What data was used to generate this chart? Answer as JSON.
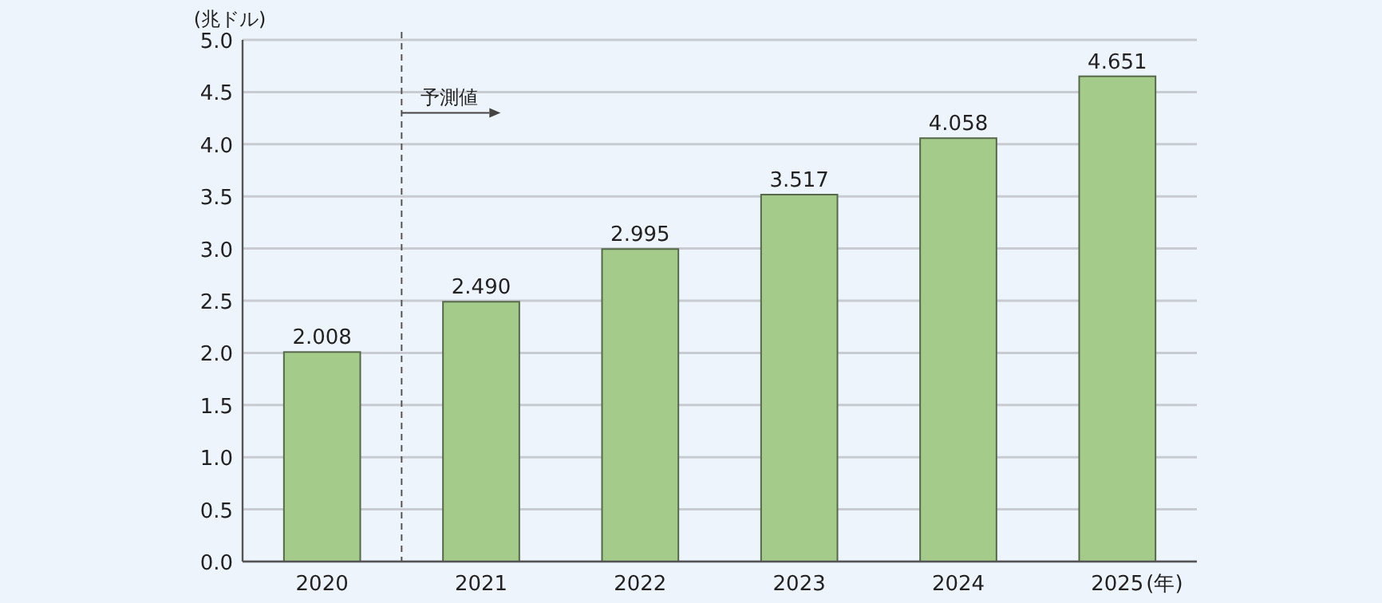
{
  "chart_data": {
    "type": "bar",
    "ylabel": "(兆ドル)",
    "xlabel": "(年)",
    "categories": [
      "2020",
      "2021",
      "2022",
      "2023",
      "2024",
      "2025"
    ],
    "values": [
      2.008,
      2.49,
      2.995,
      3.517,
      4.058,
      4.651
    ],
    "color": "#a5cb8b",
    "ylim": [
      0,
      5
    ],
    "yticks": [
      {
        "value": 0,
        "label": "0.0"
      },
      {
        "value": 0.5,
        "label": "0.5"
      },
      {
        "value": 1,
        "label": "1.0"
      },
      {
        "value": 1.5,
        "label": "1.5"
      },
      {
        "value": 2,
        "label": "2.0"
      },
      {
        "value": 2.5,
        "label": "2.5"
      },
      {
        "value": 3,
        "label": "3.0"
      },
      {
        "value": 3.5,
        "label": "3.5"
      },
      {
        "value": 4,
        "label": "4.0"
      },
      {
        "value": 4.5,
        "label": "4.5"
      },
      {
        "value": 5,
        "label": "5.0"
      }
    ],
    "grid": "y",
    "value_labels": [
      "2.008",
      "2.490",
      "2.995",
      "3.517",
      "4.058",
      "4.651"
    ],
    "annotations": [
      "予測値"
    ]
  }
}
